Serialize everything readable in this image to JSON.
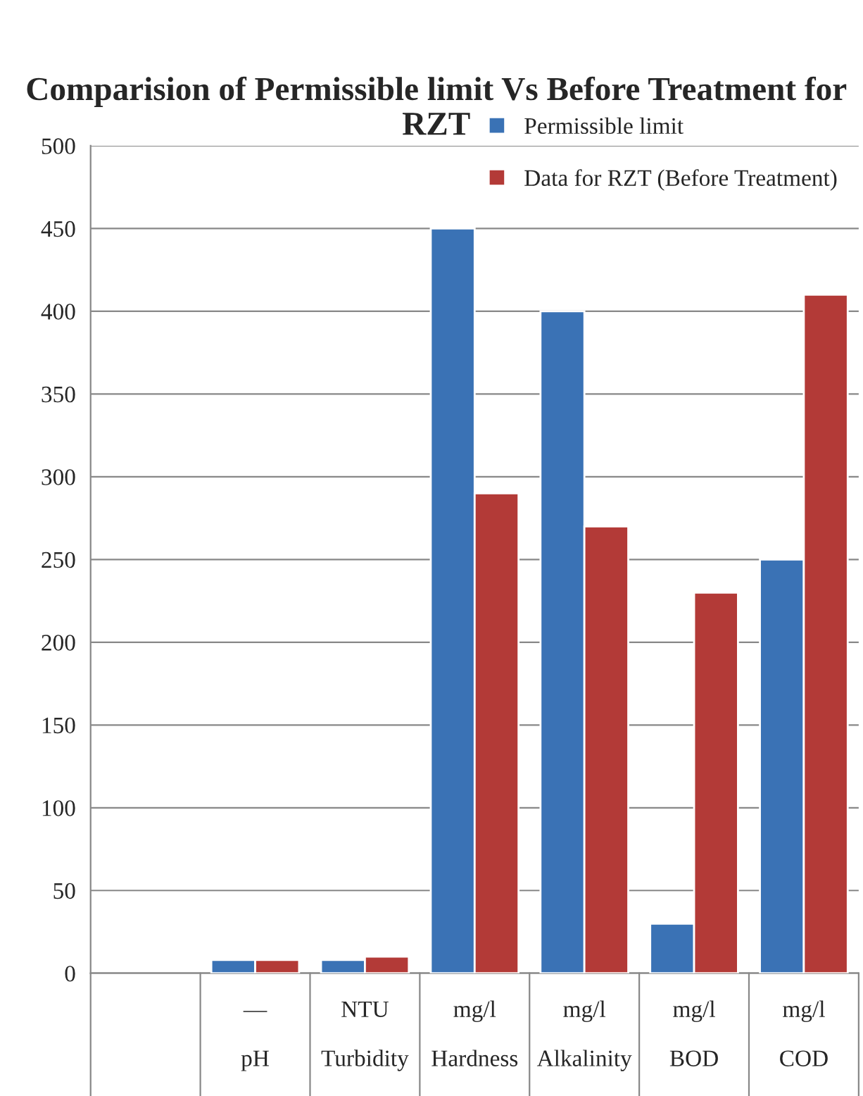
{
  "chart_data": {
    "type": "bar",
    "title": "Comparision of Permissible limit Vs Before Treatment for RZT",
    "categories": [
      null,
      "—\n\npH",
      "NTU\n\nTurbidity",
      "mg/l\n\nHardness",
      "mg/l\n\nAlkalinity",
      "mg/l\n\nBOD",
      "mg/l\n\nCOD"
    ],
    "series": [
      {
        "name": "Permissible limit",
        "color": "#3a72b5",
        "values": [
          null,
          8,
          8,
          450,
          400,
          30,
          250
        ]
      },
      {
        "name": "Data for RZT (Before Treatment)",
        "color": "#b33a37",
        "values": [
          null,
          8,
          10,
          290,
          270,
          230,
          410
        ]
      }
    ],
    "ylim": [
      0,
      500
    ],
    "yticks": [
      0,
      50,
      100,
      150,
      200,
      250,
      300,
      350,
      400,
      450,
      500
    ],
    "grid": "y",
    "legend": "top right"
  }
}
